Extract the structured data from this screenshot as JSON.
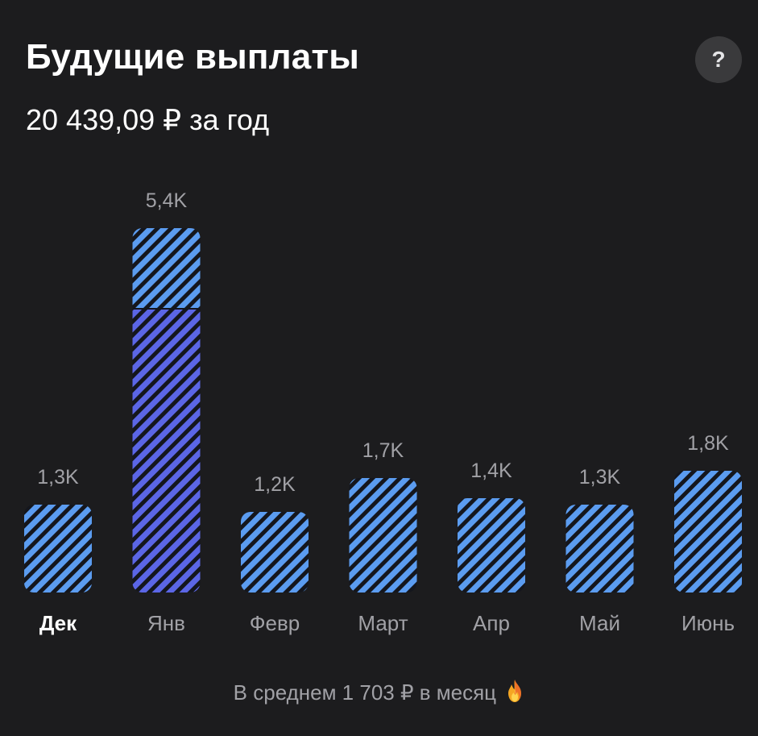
{
  "header": {
    "title": "Будущие выплаты",
    "subtitle": "20 439,09 ₽ за год",
    "help_label": "?"
  },
  "footer": {
    "text": "В среднем 1 703 ₽ в месяц",
    "icon": "fire-icon"
  },
  "colors": {
    "background": "#1c1c1e",
    "bar_light": "#5b9cf0",
    "bar_dark": "#5b66e6",
    "stripe": "#14161d",
    "label": "#a1a1a6",
    "active_label": "#ffffff"
  },
  "chart_data": {
    "type": "bar",
    "categories": [
      "Дек",
      "Янв",
      "Февр",
      "Март",
      "Апр",
      "Май",
      "Июнь"
    ],
    "values": [
      1.3,
      5.4,
      1.2,
      1.7,
      1.4,
      1.3,
      1.8
    ],
    "value_labels": [
      "1,3K",
      "5,4K",
      "1,2K",
      "1,7K",
      "1,4K",
      "1,3K",
      "1,8K"
    ],
    "stacked_segments": [
      null,
      {
        "dark_value": 4.2,
        "light_value": 1.2
      },
      null,
      null,
      null,
      null,
      null
    ],
    "active_index": 0,
    "ylim": [
      0,
      5.4
    ],
    "grid": false
  }
}
